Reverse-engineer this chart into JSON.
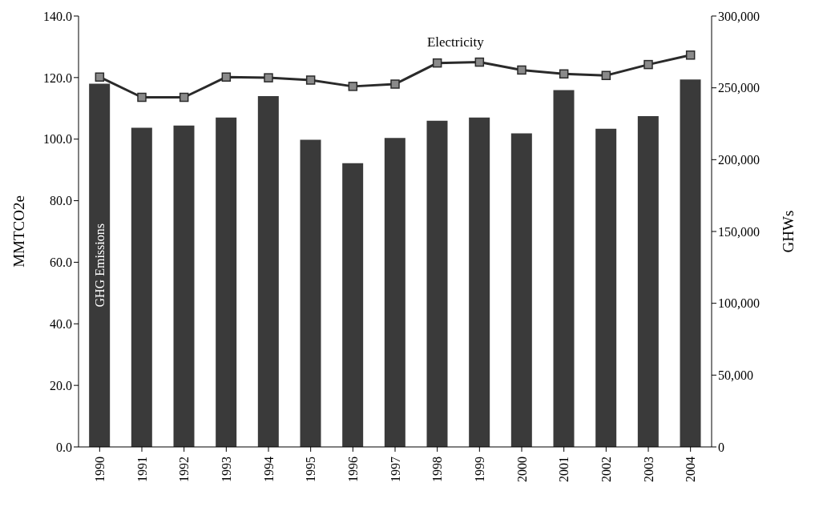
{
  "chart_data": {
    "type": "bar",
    "categories": [
      "1990",
      "1991",
      "1992",
      "1993",
      "1994",
      "1995",
      "1996",
      "1997",
      "1998",
      "1999",
      "2000",
      "2001",
      "2002",
      "2003",
      "2004"
    ],
    "series": [
      {
        "name": "GHG Emissions",
        "color": "#3a3a3a",
        "values": [
          118,
          103.7,
          104.4,
          107,
          114,
          99.8,
          92.2,
          100.4,
          106,
          107,
          101.9,
          115.9,
          103.4,
          107.5,
          119.4
        ]
      },
      {
        "name": "Electricity",
        "type": "line",
        "axis": "y2",
        "color": "#2a2a2a",
        "values": [
          257500,
          243400,
          243400,
          257500,
          257000,
          255400,
          251000,
          252600,
          267300,
          267900,
          262400,
          259700,
          258600,
          266200,
          272800
        ]
      }
    ],
    "ylabel": "MMTCO2e",
    "y2label": "GHWs",
    "ylim": [
      0,
      140
    ],
    "yticks": [
      {
        "value": 0,
        "label": "0.0"
      },
      {
        "value": 20,
        "label": "20.0"
      },
      {
        "value": 40,
        "label": "40.0"
      },
      {
        "value": 60,
        "label": "60.0"
      },
      {
        "value": 80,
        "label": "80.0"
      },
      {
        "value": 100,
        "label": "100.0"
      },
      {
        "value": 120,
        "label": "120.0"
      },
      {
        "value": 140,
        "label": "140.0"
      }
    ],
    "y2lim": [
      0,
      300000
    ],
    "y2ticks": [
      {
        "value": 0,
        "label": "0"
      },
      {
        "value": 50000,
        "label": "50,000"
      },
      {
        "value": 100000,
        "label": "100,000"
      },
      {
        "value": 150000,
        "label": "150,000"
      },
      {
        "value": 200000,
        "label": "200,000"
      },
      {
        "value": 250000,
        "label": "250,000"
      },
      {
        "value": 300000,
        "label": "300,000"
      }
    ],
    "grid": false,
    "legend": false,
    "marker": "square",
    "line_style": "solid"
  }
}
